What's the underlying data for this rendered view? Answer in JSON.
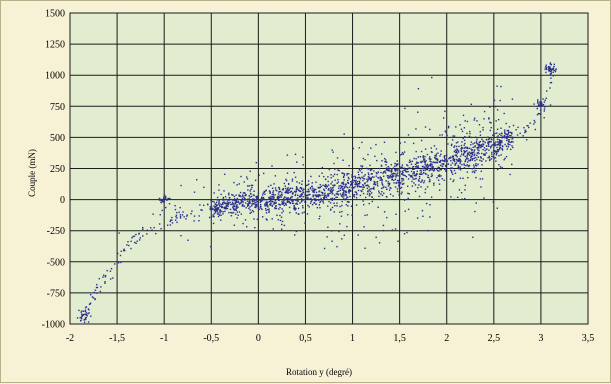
{
  "chart_data": {
    "type": "scatter",
    "title": "",
    "xlabel": "Rotation y (degré)",
    "ylabel": "Couple (mN)",
    "xlim": [
      -2,
      3.5
    ],
    "ylim": [
      -1000,
      1500
    ],
    "grid": true,
    "x_ticks": [
      "-2",
      "-1,5",
      "-1",
      "-0,5",
      "0",
      "0,5",
      "1",
      "1,5",
      "2",
      "2,5",
      "3",
      "3,5"
    ],
    "y_ticks": [
      "1500",
      "1250",
      "1000",
      "750",
      "500",
      "250",
      "0",
      "-250",
      "-500",
      "-750",
      "-1000"
    ],
    "colors": {
      "plot_bg": "#e2eccf",
      "page_bg": "#f7f2d6",
      "grid": "#1a1a1a",
      "marker": "#2a2f8c"
    },
    "series": [
      {
        "values_trend": [
          [
            -1.85,
            -930
          ],
          [
            -1.8,
            -850
          ],
          [
            -1.7,
            -700
          ],
          [
            -1.5,
            -480
          ],
          [
            -1.3,
            -300
          ],
          [
            -1.0,
            -190
          ],
          [
            -0.8,
            -120
          ],
          [
            -0.5,
            -70
          ],
          [
            -0.3,
            -40
          ],
          [
            0.0,
            -10
          ],
          [
            0.3,
            20
          ],
          [
            0.5,
            40
          ],
          [
            0.8,
            70
          ],
          [
            1.0,
            100
          ],
          [
            1.2,
            140
          ],
          [
            1.5,
            200
          ],
          [
            1.8,
            260
          ],
          [
            2.0,
            300
          ],
          [
            2.2,
            360
          ],
          [
            2.5,
            430
          ],
          [
            2.7,
            500
          ],
          [
            2.9,
            600
          ],
          [
            3.0,
            720
          ],
          [
            3.05,
            820
          ],
          [
            3.1,
            950
          ],
          [
            3.15,
            1060
          ]
        ],
        "spread": [
          [
            -1.85,
            30
          ],
          [
            -1.5,
            60
          ],
          [
            -1.0,
            80
          ],
          [
            -0.5,
            90
          ],
          [
            0.0,
            120
          ],
          [
            0.5,
            150
          ],
          [
            1.0,
            170
          ],
          [
            1.5,
            190
          ],
          [
            2.0,
            180
          ],
          [
            2.5,
            160
          ],
          [
            3.0,
            90
          ],
          [
            3.15,
            60
          ]
        ],
        "clusters": [
          {
            "x": -1.0,
            "y": 0,
            "count": 25
          },
          {
            "x": 3.1,
            "y": 1050,
            "count": 40
          },
          {
            "x": 3.0,
            "y": 760,
            "count": 30
          },
          {
            "x": -1.85,
            "y": -930,
            "count": 30
          }
        ],
        "count": 2200
      }
    ]
  }
}
